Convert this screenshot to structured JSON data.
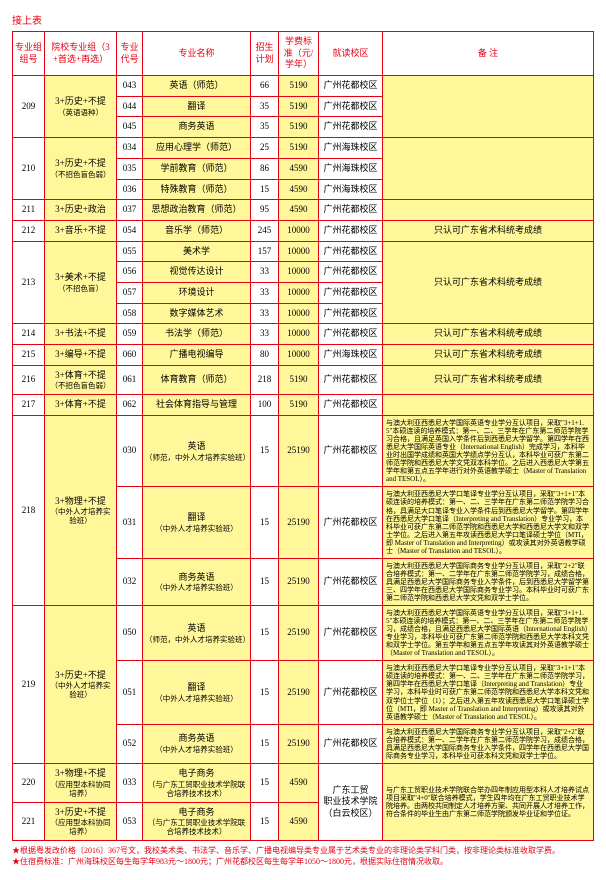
{
  "caption": "接上表",
  "headers": {
    "group_no": "专业组组号",
    "group_name": "院校专业组（3+首选+再选）",
    "major_code": "专业代号",
    "major_name": "专业名称",
    "plan": "招生计划",
    "tuition": "学费标准（元/学年）",
    "campus": "就读校区",
    "remark": "备 注"
  },
  "campuses": {
    "huadu": "广州花都校区",
    "haizhu": "广州海珠校区",
    "gdgm": "广东工贸职业技术学院（白云校区）"
  },
  "remarks": {
    "art": "只认可广东省术科统考成绩",
    "r030": "与澳大利亚西悉尼大学国际英语专业学分互认项目，采取\"3+1+1.5\"本硕连读的培养模式：第一、二、三学年在广东第二师范学院学习合格，且满足英国入学条件后到西悉尼大学留学。第四学年在西悉尼大学国际英语专业（International English）完成学习，本科毕业时出国学成绩和英国大学绩点学分互认，本科毕业可获广东第二师范学院和西悉尼大学文凭双本科学位。之后进入西悉尼大学第五学年和第五点五学年进行对外英语教学硕士（Master of Translation and TESOL）。",
    "r031": "与澳大利亚西悉尼大学口笔译专业学分互认项目，采取\"3+1+1\"本硕连读的培养模式：第一、二、三学年在广东第二师范学院学习合格，具满足大口笔译专业入学条件后到西悉尼大学留学。第四学年在西悉尼大学口笔译（Interpreting and Translation）专业学习，本科毕业可获广东第二师范学院和西悉尼大学和西悉尼大学文和双学士学位。之后进入第五年攻读西悉尼大学口笔译硕士学位（MTI，即 Master of Translation and Interpreting）或攻读其对外英语教学硕士（Master of Translation and TESOL）。",
    "r032": "与澳大利亚西悉尼大学国际商务专业学分互认项目，采取\"2+2\"联合培养模式：第一、二学年在广东第二师范学院学习，成绩合格，具满足西悉尼大学国际商务专业入学条件，后到西悉尼大学留学第三、四学年在西悉尼大学国际商务专业学习。本科毕业时可获广东第二师范学院和西悉尼大学文凭和双学士学位。",
    "r050": "与澳大利亚西悉尼大学国际英语专业学分互认项目，采取\"3+1+1.5\"本硕连读的培养模式：第一、二、三学年在广东第二师范学院学习，成绩合格，且满足西悉尼大学国际英语（International English）专业学习，本科毕业可获广东第二师范学院和西悉尼大学本科文凭和双学士学位。第五学年和第五点五学年攻读其对外英语教学硕士（Master of Translation and TESOL）。",
    "r051": "与澳大利亚西悉尼大学口笔译专业学分互认项目，采取\"3+1+1\"本硕连读的培养模式：第一、二、三学年在广东第二师范学院学习，第四学年在西悉尼大学口笔译（Interpreting and Translation）专业学习，本科毕业时可获广东第二师范学院和西悉尼大学本科文凭和双学位士学位（1）；之后进入第五年攻读西悉尼大学口笔译硕士学位（MTI，即 Master of Translation and Interpreting）或攻读其对外英语教学硕士（Master of Translation and TESOL）。",
    "r052": "与澳大利亚西悉尼大学国际商务专业学分互认项目，采取\"2+2\"联合培养模式：第一、二学年在广东第二师范学院学习，成绩合格，具满足西悉尼大学国际商务专业入学条件，四学年在西悉尼大学国际商务专业学习，本科毕业可获本科文凭和双学士学位。",
    "rgm": "与广东工贸职业技术学院联合举办四年制应用型本科人才培养试点项目采取\"4+0\"联合培养模式，学生四年均在广东工贸职业技术学院培养。由两校共同制定人才培养方案、共同开展人才培养工作，符合条件的毕业生由广东第二师范学院颁发毕业证和学位证。"
  },
  "rows": [
    {
      "gno": "209",
      "gname": "3+历史+不提（英语语种）",
      "code": "043",
      "major": "英语（师范）",
      "plan": "66",
      "tuition": "5190",
      "campus": "huadu",
      "r": "",
      "bg": [
        "w",
        "y",
        "w",
        "y",
        "w",
        "y",
        "w",
        "y"
      ]
    },
    {
      "gno": "",
      "gname": "",
      "code": "044",
      "major": "翻译",
      "plan": "35",
      "tuition": "5190",
      "campus": "huadu",
      "r": "",
      "bg": [
        "",
        "",
        "w",
        "y",
        "w",
        "y",
        "w",
        ""
      ]
    },
    {
      "gno": "",
      "gname": "",
      "code": "045",
      "major": "商务英语",
      "plan": "35",
      "tuition": "5190",
      "campus": "huadu",
      "r": "",
      "bg": [
        "",
        "",
        "w",
        "y",
        "w",
        "y",
        "w",
        ""
      ]
    },
    {
      "gno": "210",
      "gname": "3+历史+不提（不招色盲色弱）",
      "code": "034",
      "major": "应用心理学（师范）",
      "plan": "25",
      "tuition": "5190",
      "campus": "haizhu",
      "r": "",
      "bg": [
        "w",
        "y",
        "w",
        "y",
        "w",
        "y",
        "w",
        "y"
      ]
    },
    {
      "gno": "",
      "gname": "",
      "code": "035",
      "major": "学前教育（师范）",
      "plan": "86",
      "tuition": "4590",
      "campus": "haizhu",
      "r": "",
      "bg": [
        "",
        "",
        "w",
        "y",
        "w",
        "y",
        "w",
        ""
      ]
    },
    {
      "gno": "",
      "gname": "",
      "code": "036",
      "major": "特殊教育（师范）",
      "plan": "15",
      "tuition": "4590",
      "campus": "haizhu",
      "r": "",
      "bg": [
        "",
        "",
        "w",
        "y",
        "w",
        "y",
        "w",
        ""
      ]
    },
    {
      "gno": "211",
      "gname": "3+历史+政治",
      "code": "037",
      "major": "思想政治教育（师范）",
      "plan": "95",
      "tuition": "4590",
      "campus": "huadu",
      "r": "",
      "bg": [
        "w",
        "y",
        "w",
        "y",
        "w",
        "y",
        "w",
        "y"
      ]
    },
    {
      "gno": "212",
      "gname": "3+音乐+不提",
      "code": "054",
      "major": "音乐学（师范）",
      "plan": "245",
      "tuition": "10000",
      "campus": "huadu",
      "r": "art",
      "bg": [
        "w",
        "y",
        "w",
        "y",
        "w",
        "y",
        "w",
        "y"
      ]
    },
    {
      "gno": "213",
      "gname": "3+美术+不提（不招色盲）",
      "code": "055",
      "major": "美术学",
      "plan": "157",
      "tuition": "10000",
      "campus": "huadu",
      "r": "art",
      "bg": [
        "w",
        "y",
        "w",
        "y",
        "w",
        "y",
        "w",
        "y"
      ],
      "remark_span": 4
    },
    {
      "gno": "",
      "gname": "",
      "code": "056",
      "major": "视觉传达设计",
      "plan": "33",
      "tuition": "10000",
      "campus": "huadu",
      "r": "",
      "bg": [
        "",
        "",
        "w",
        "y",
        "w",
        "y",
        "w",
        ""
      ]
    },
    {
      "gno": "",
      "gname": "",
      "code": "057",
      "major": "环境设计",
      "plan": "33",
      "tuition": "10000",
      "campus": "huadu",
      "r": "",
      "bg": [
        "",
        "",
        "w",
        "y",
        "w",
        "y",
        "w",
        ""
      ]
    },
    {
      "gno": "",
      "gname": "",
      "code": "058",
      "major": "数字媒体艺术",
      "plan": "33",
      "tuition": "10000",
      "campus": "huadu",
      "r": "",
      "bg": [
        "",
        "",
        "w",
        "y",
        "w",
        "y",
        "w",
        ""
      ]
    },
    {
      "gno": "214",
      "gname": "3+书法+不提",
      "code": "059",
      "major": "书法学（师范）",
      "plan": "33",
      "tuition": "10000",
      "campus": "huadu",
      "r": "art",
      "bg": [
        "w",
        "y",
        "w",
        "y",
        "w",
        "y",
        "w",
        "y"
      ]
    },
    {
      "gno": "215",
      "gname": "3+编导+不提",
      "code": "060",
      "major": "广播电视编导",
      "plan": "80",
      "tuition": "10000",
      "campus": "haizhu",
      "r": "art",
      "bg": [
        "w",
        "y",
        "w",
        "y",
        "w",
        "y",
        "w",
        "y"
      ]
    },
    {
      "gno": "216",
      "gname": "3+体育+不提（不招色盲色弱）",
      "code": "061",
      "major": "体育教育（师范）",
      "plan": "218",
      "tuition": "5190",
      "campus": "huadu",
      "r": "art",
      "bg": [
        "w",
        "y",
        "w",
        "y",
        "w",
        "y",
        "w",
        "y"
      ]
    },
    {
      "gno": "217",
      "gname": "3+体育+不提",
      "code": "062",
      "major": "社会体育指导与管理",
      "plan": "100",
      "tuition": "5190",
      "campus": "huadu",
      "r": "",
      "bg": [
        "w",
        "y",
        "w",
        "y",
        "w",
        "y",
        "w",
        "y"
      ]
    },
    {
      "gno": "218",
      "gname": "3+物理+不提（中外人才培养实验班）",
      "code": "030",
      "major": "英语\n（师范，中外人才培养实验班）",
      "plan": "15",
      "tuition": "25190",
      "campus": "huadu",
      "r": "r030",
      "bg": [
        "w",
        "y",
        "w",
        "y",
        "w",
        "y",
        "w",
        "y"
      ]
    },
    {
      "gno": "",
      "gname": "",
      "code": "031",
      "major": "翻译\n（中外人才培养实验班）",
      "plan": "15",
      "tuition": "25190",
      "campus": "huadu",
      "r": "r031",
      "bg": [
        "",
        "",
        "w",
        "y",
        "w",
        "y",
        "w",
        "y"
      ]
    },
    {
      "gno": "",
      "gname": "",
      "code": "032",
      "major": "商务英语\n（中外人才培养实验班）",
      "plan": "15",
      "tuition": "25190",
      "campus": "huadu",
      "r": "r032",
      "bg": [
        "",
        "",
        "w",
        "y",
        "w",
        "y",
        "w",
        "y"
      ]
    },
    {
      "gno": "219",
      "gname": "3+历史+不提（中外人才培养实验班）",
      "code": "050",
      "major": "英语\n（师范，中外人才培养实验班）",
      "plan": "15",
      "tuition": "25190",
      "campus": "huadu",
      "r": "r050",
      "bg": [
        "w",
        "y",
        "w",
        "y",
        "w",
        "y",
        "w",
        "y"
      ]
    },
    {
      "gno": "",
      "gname": "",
      "code": "051",
      "major": "翻译\n（中外人才培养实验班）",
      "plan": "15",
      "tuition": "25190",
      "campus": "huadu",
      "r": "r051",
      "bg": [
        "",
        "",
        "w",
        "y",
        "w",
        "y",
        "w",
        "y"
      ]
    },
    {
      "gno": "",
      "gname": "",
      "code": "052",
      "major": "商务英语\n（中外人才培养实验班）",
      "plan": "15",
      "tuition": "25190",
      "campus": "huadu",
      "r": "r052",
      "bg": [
        "",
        "",
        "w",
        "y",
        "w",
        "y",
        "w",
        "y"
      ]
    },
    {
      "gno": "220",
      "gname": "3+物理+不提（应用型本科协同培养）",
      "code": "033",
      "major": "电子商务\n（与广东工贸职业技术学院联合培养技术技术）",
      "plan": "15",
      "tuition": "4590",
      "campus": "gdgm",
      "r": "rgm",
      "bg": [
        "w",
        "y",
        "w",
        "y",
        "w",
        "y",
        "w",
        "y"
      ],
      "campus_span": 2,
      "remark_span": 2
    },
    {
      "gno": "221",
      "gname": "3+历史+不提（应用型本科协同培养）",
      "code": "053",
      "major": "电子商务\n（与广东工贸职业技术学院联合培养技术技术）",
      "plan": "15",
      "tuition": "4590",
      "r": "",
      "bg": [
        "w",
        "y",
        "w",
        "y",
        "w",
        "y",
        "",
        ""
      ]
    }
  ],
  "group_spans": {
    "209": 3,
    "210": 3,
    "211": 1,
    "212": 1,
    "213": 4,
    "214": 1,
    "215": 1,
    "216": 1,
    "217": 1,
    "218": 3,
    "219": 3,
    "220": 1,
    "221": 1
  },
  "footer": [
    "★根据粤发改价格〔2016〕367号文，我校美术类、书法学、音乐学、广播电视编导类专业属于艺术类专业的非理论类学科门类，按非理论类标准收取学费。",
    "★住宿费标准：广州海珠校区每生每学年983元～1800元；广州花都校区每生每学年1050～1800元，根据实际住宿情况收取。"
  ]
}
